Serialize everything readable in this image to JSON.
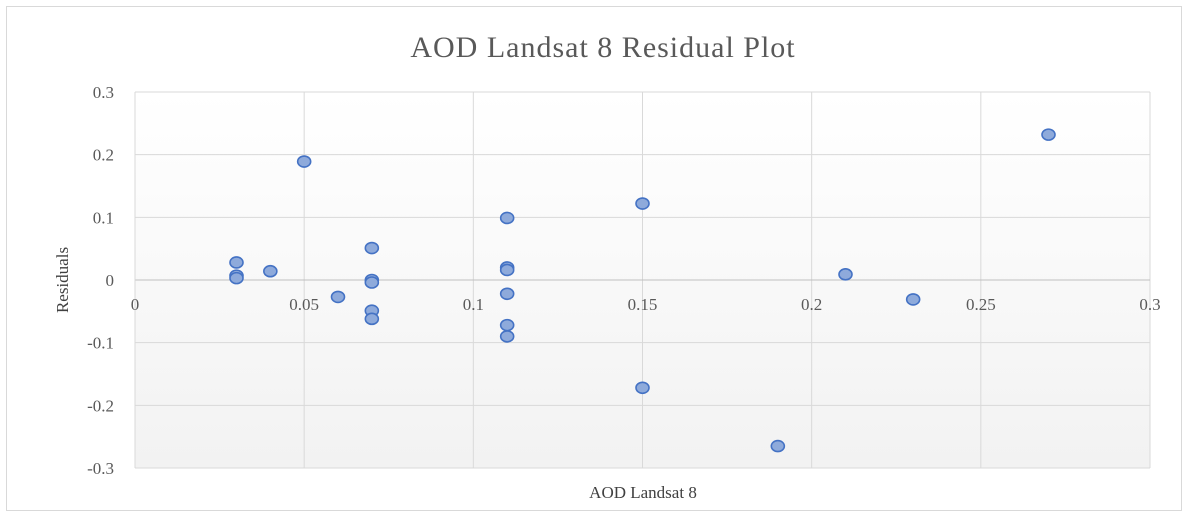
{
  "chart_data": {
    "type": "scatter",
    "title": "AOD Landsat 8 Residual Plot",
    "xlabel": "AOD Landsat 8",
    "ylabel": "Residuals",
    "xlim": [
      0,
      0.3
    ],
    "ylim": [
      -0.3,
      0.3
    ],
    "xticks": [
      "0",
      "0.05",
      "0.1",
      "0.15",
      "0.2",
      "0.25",
      "0.3"
    ],
    "yticks": [
      "0.3",
      "0.2",
      "0.1",
      "0",
      "-0.1",
      "-0.2",
      "-0.3"
    ],
    "grid": true,
    "legend": "none",
    "marker_color": "#8eaadb",
    "marker_edge_color": "#4472c4",
    "points": [
      {
        "x": 0.03,
        "y": 0.028
      },
      {
        "x": 0.03,
        "y": 0.007
      },
      {
        "x": 0.03,
        "y": 0.003
      },
      {
        "x": 0.04,
        "y": 0.014
      },
      {
        "x": 0.05,
        "y": 0.189
      },
      {
        "x": 0.06,
        "y": -0.027
      },
      {
        "x": 0.07,
        "y": 0.051
      },
      {
        "x": 0.07,
        "y": 0.0
      },
      {
        "x": 0.07,
        "y": -0.004
      },
      {
        "x": 0.07,
        "y": -0.049
      },
      {
        "x": 0.07,
        "y": -0.062
      },
      {
        "x": 0.11,
        "y": 0.099
      },
      {
        "x": 0.11,
        "y": 0.02
      },
      {
        "x": 0.11,
        "y": 0.016
      },
      {
        "x": 0.11,
        "y": -0.022
      },
      {
        "x": 0.11,
        "y": -0.072
      },
      {
        "x": 0.11,
        "y": -0.09
      },
      {
        "x": 0.15,
        "y": 0.122
      },
      {
        "x": 0.15,
        "y": -0.172
      },
      {
        "x": 0.19,
        "y": -0.265
      },
      {
        "x": 0.21,
        "y": 0.009
      },
      {
        "x": 0.23,
        "y": -0.031
      },
      {
        "x": 0.27,
        "y": 0.232
      }
    ]
  }
}
